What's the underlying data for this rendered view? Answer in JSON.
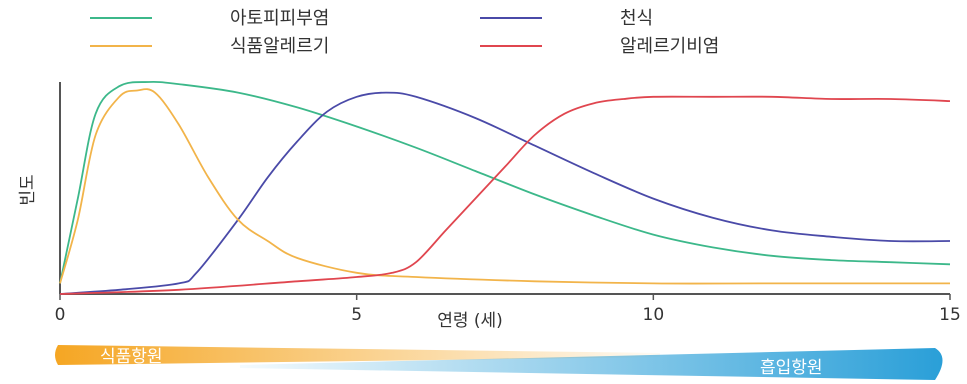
{
  "chart_data": {
    "type": "line",
    "xlabel": "연령 (세)",
    "ylabel": "빈도",
    "xlim": [
      0,
      15
    ],
    "ylim": [
      0,
      1
    ],
    "x_ticks": [
      0,
      5,
      10,
      15
    ],
    "grid": false,
    "legend_position": "top",
    "series": [
      {
        "name": "아토피피부염",
        "color": "#3cb88a",
        "points": [
          [
            0,
            0.05
          ],
          [
            0.3,
            0.45
          ],
          [
            0.6,
            0.85
          ],
          [
            1,
            0.98
          ],
          [
            1.5,
            1.0
          ],
          [
            2,
            0.99
          ],
          [
            3,
            0.95
          ],
          [
            4,
            0.88
          ],
          [
            5,
            0.79
          ],
          [
            6,
            0.69
          ],
          [
            7,
            0.58
          ],
          [
            8,
            0.47
          ],
          [
            9,
            0.37
          ],
          [
            10,
            0.28
          ],
          [
            11,
            0.22
          ],
          [
            12,
            0.18
          ],
          [
            13,
            0.16
          ],
          [
            14,
            0.15
          ],
          [
            15,
            0.14
          ]
        ]
      },
      {
        "name": "천식",
        "color": "#4a4aa8",
        "points": [
          [
            0,
            0.0
          ],
          [
            1,
            0.02
          ],
          [
            2,
            0.05
          ],
          [
            2.3,
            0.1
          ],
          [
            3,
            0.35
          ],
          [
            3.5,
            0.55
          ],
          [
            4,
            0.72
          ],
          [
            4.5,
            0.86
          ],
          [
            5,
            0.93
          ],
          [
            5.5,
            0.95
          ],
          [
            6,
            0.93
          ],
          [
            7,
            0.83
          ],
          [
            8,
            0.7
          ],
          [
            9,
            0.57
          ],
          [
            10,
            0.45
          ],
          [
            11,
            0.36
          ],
          [
            12,
            0.3
          ],
          [
            13,
            0.27
          ],
          [
            14,
            0.25
          ],
          [
            15,
            0.25
          ]
        ]
      },
      {
        "name": "식품알레르기",
        "color": "#f2b44a",
        "points": [
          [
            0,
            0.05
          ],
          [
            0.3,
            0.35
          ],
          [
            0.6,
            0.75
          ],
          [
            1,
            0.93
          ],
          [
            1.3,
            0.96
          ],
          [
            1.6,
            0.95
          ],
          [
            2,
            0.8
          ],
          [
            2.5,
            0.55
          ],
          [
            3,
            0.35
          ],
          [
            3.5,
            0.25
          ],
          [
            4,
            0.17
          ],
          [
            5,
            0.1
          ],
          [
            6,
            0.08
          ],
          [
            8,
            0.06
          ],
          [
            10,
            0.05
          ],
          [
            12,
            0.05
          ],
          [
            15,
            0.05
          ]
        ]
      },
      {
        "name": "알레르기비염",
        "color": "#e0464f",
        "points": [
          [
            0,
            0.0
          ],
          [
            2,
            0.02
          ],
          [
            4,
            0.06
          ],
          [
            5,
            0.08
          ],
          [
            5.6,
            0.1
          ],
          [
            6,
            0.15
          ],
          [
            6.5,
            0.3
          ],
          [
            7,
            0.45
          ],
          [
            7.5,
            0.6
          ],
          [
            8,
            0.75
          ],
          [
            8.5,
            0.85
          ],
          [
            9,
            0.9
          ],
          [
            9.5,
            0.92
          ],
          [
            10,
            0.93
          ],
          [
            11,
            0.93
          ],
          [
            12,
            0.93
          ],
          [
            13,
            0.92
          ],
          [
            14,
            0.92
          ],
          [
            15,
            0.91
          ]
        ]
      }
    ],
    "bars": [
      {
        "label": "식품항원",
        "color": "#f5a623"
      },
      {
        "label": "흡입항원",
        "color": "#2a9fd8"
      }
    ]
  }
}
